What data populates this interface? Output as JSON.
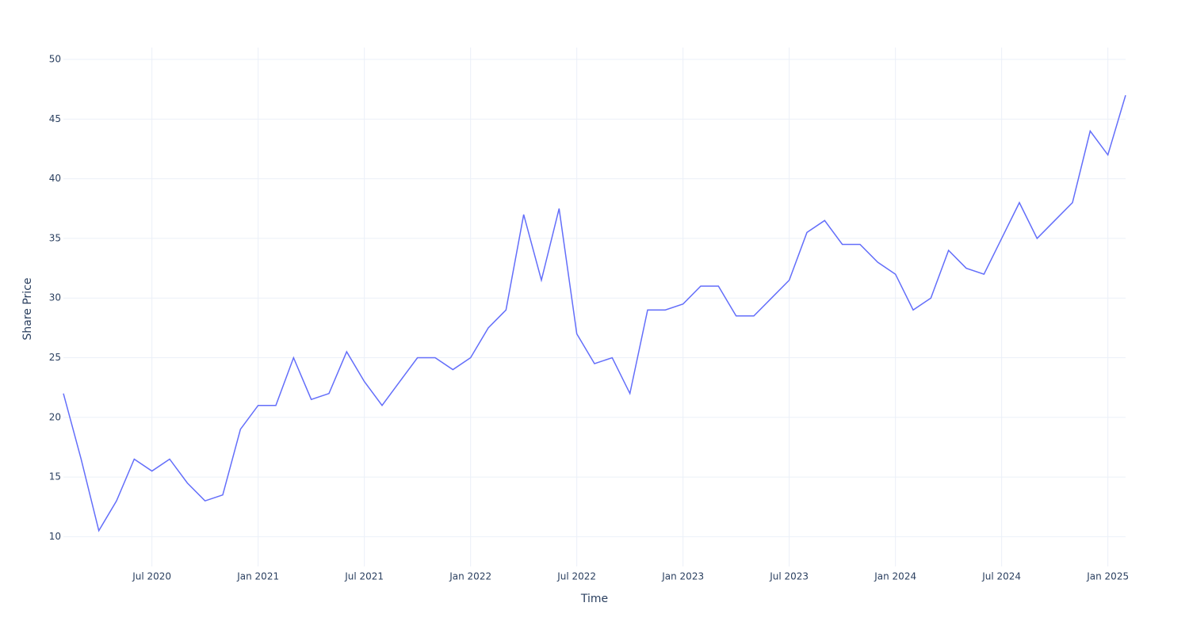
{
  "chart_data": {
    "type": "line",
    "x_label": "Time",
    "y_label": "Share Price",
    "x": [
      "2020-02",
      "2020-03",
      "2020-04",
      "2020-05",
      "2020-06",
      "2020-07",
      "2020-08",
      "2020-09",
      "2020-10",
      "2020-11",
      "2020-12",
      "2021-01",
      "2021-02",
      "2021-03",
      "2021-04",
      "2021-05",
      "2021-06",
      "2021-07",
      "2021-08",
      "2021-09",
      "2021-10",
      "2021-11",
      "2021-12",
      "2022-01",
      "2022-02",
      "2022-03",
      "2022-04",
      "2022-05",
      "2022-06",
      "2022-07",
      "2022-08",
      "2022-09",
      "2022-10",
      "2022-11",
      "2022-12",
      "2023-01",
      "2023-02",
      "2023-03",
      "2023-04",
      "2023-05",
      "2023-06",
      "2023-07",
      "2023-08",
      "2023-09",
      "2023-10",
      "2023-11",
      "2023-12",
      "2024-01",
      "2024-02",
      "2024-03",
      "2024-04",
      "2024-05",
      "2024-06",
      "2024-07",
      "2024-08",
      "2024-09",
      "2024-10",
      "2024-11",
      "2024-12",
      "2025-01",
      "2025-02"
    ],
    "series": [
      {
        "color": "#636efa",
        "values": [
          22,
          16.5,
          10.5,
          13,
          16.5,
          15.5,
          16.5,
          14.5,
          13,
          13.5,
          19,
          21,
          21,
          25,
          21.5,
          22,
          25.5,
          23,
          21,
          23,
          25,
          25,
          24,
          25,
          27.5,
          29,
          37,
          31.5,
          37.5,
          27,
          24.5,
          25,
          22,
          29,
          29,
          29.5,
          31,
          31,
          28.5,
          28.5,
          30,
          31.5,
          35.5,
          36.5,
          34.5,
          34.5,
          33,
          32,
          29,
          30,
          34,
          32.5,
          32,
          35,
          38,
          35,
          36.5,
          38,
          44,
          42,
          47
        ]
      }
    ],
    "xlim": [
      "2020-02",
      "2025-02"
    ],
    "xticks": [
      {
        "value": "2020-07",
        "label": "Jul 2020"
      },
      {
        "value": "2021-01",
        "label": "Jan 2021"
      },
      {
        "value": "2021-07",
        "label": "Jul 2021"
      },
      {
        "value": "2022-01",
        "label": "Jan 2022"
      },
      {
        "value": "2022-07",
        "label": "Jul 2022"
      },
      {
        "value": "2023-01",
        "label": "Jan 2023"
      },
      {
        "value": "2023-07",
        "label": "Jul 2023"
      },
      {
        "value": "2024-01",
        "label": "Jan 2024"
      },
      {
        "value": "2024-07",
        "label": "Jul 2024"
      },
      {
        "value": "2025-01",
        "label": "Jan 2025"
      }
    ],
    "ylim": [
      7.5,
      51
    ],
    "yticks": [
      10,
      15,
      20,
      25,
      30,
      35,
      40,
      45,
      50
    ],
    "grid": true
  }
}
